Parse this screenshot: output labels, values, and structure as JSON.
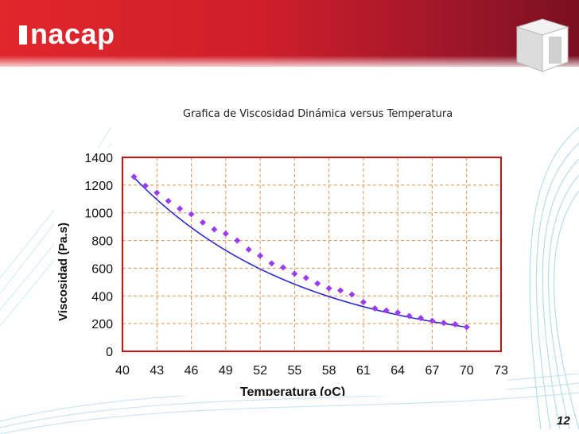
{
  "header": {
    "logo_text": "nacap"
  },
  "colors": {
    "brand_red": "#d6242b",
    "brand_dark": "#7a1020",
    "series": "#9b3cf0",
    "axis_frame": "#cc1111",
    "grid": "#e8904a"
  },
  "page_number": "12",
  "chart_data": {
    "type": "scatter",
    "title": "Grafica de Viscosidad Dinámica versus Temperatura",
    "xlabel": "Temperatura (oC)",
    "ylabel": "Viscosidad (Pa.s)",
    "xlim": [
      40,
      73
    ],
    "ylim": [
      0,
      1400
    ],
    "xticks": [
      40,
      43,
      46,
      49,
      52,
      55,
      58,
      61,
      64,
      67,
      70,
      73
    ],
    "yticks": [
      0,
      200,
      400,
      600,
      800,
      1000,
      1200,
      1400
    ],
    "xtick_labels": [
      "40",
      "43",
      "46",
      "49",
      "52",
      "55",
      "58",
      "61",
      "64",
      "67",
      "70",
      "73"
    ],
    "ytick_labels": [
      "0",
      "200",
      "400",
      "600",
      "800",
      "1000",
      "1200",
      "1400"
    ],
    "grid": true,
    "series": [
      {
        "name": "Viscosidad",
        "x": [
          41,
          42,
          43,
          44,
          45,
          46,
          47,
          48,
          49,
          50,
          51,
          52,
          53,
          54,
          55,
          56,
          57,
          58,
          59,
          60,
          61,
          62,
          63,
          64,
          65,
          66,
          67,
          68,
          69,
          70
        ],
        "y": [
          1260,
          1195,
          1145,
          1085,
          1030,
          990,
          930,
          880,
          850,
          800,
          735,
          690,
          635,
          605,
          560,
          530,
          490,
          455,
          440,
          410,
          355,
          310,
          295,
          280,
          255,
          240,
          220,
          205,
          195,
          175
        ]
      }
    ],
    "trendline": {
      "x": [
        41,
        70
      ],
      "type": "exponential",
      "y_start": 1255,
      "y_end": 175
    }
  }
}
